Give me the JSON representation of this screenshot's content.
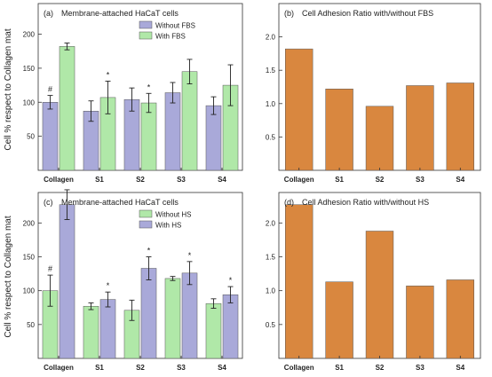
{
  "colors": {
    "lavender": "#A9A9D9",
    "green": "#B0E8A8",
    "orange": "#D9873F",
    "axis": "#333333",
    "text": "#222222"
  },
  "shared_ylabel": "Cell % respect to Collagen mat",
  "chart_data": [
    {
      "panel": "a",
      "panel_label": "(a)",
      "type": "bar",
      "title": "Membrane-attached HaCaT cells",
      "categories": [
        "Collagen",
        "S1",
        "S2",
        "S3",
        "S4"
      ],
      "ylabel": "Cell % respect to Collagen mat",
      "ylim": [
        0,
        245
      ],
      "yticks": [
        "50",
        "100",
        "150",
        "200"
      ],
      "legend_position": "top-right",
      "series": [
        {
          "name": "Without FBS",
          "color_key": "lavender",
          "values": [
            100,
            87,
            104,
            114,
            95
          ],
          "errors": [
            10,
            15,
            17,
            15,
            13
          ]
        },
        {
          "name": "With FBS",
          "color_key": "green",
          "values": [
            182,
            107,
            99,
            145,
            125
          ],
          "errors": [
            5,
            24,
            14,
            18,
            30
          ]
        }
      ],
      "annotations": [
        {
          "series": 0,
          "category": "Collagen",
          "text": "#"
        },
        {
          "series": 1,
          "category": "S1",
          "text": "*"
        },
        {
          "series": 1,
          "category": "S2",
          "text": "*"
        }
      ]
    },
    {
      "panel": "b",
      "panel_label": "(b)",
      "type": "bar",
      "title": "Cell Adhesion Ratio with/without FBS",
      "categories": [
        "Collagen",
        "S1",
        "S2",
        "S3",
        "S4"
      ],
      "ylim": [
        0,
        2.5
      ],
      "yticks": [
        "0.5",
        "1.0",
        "1.5",
        "2.0"
      ],
      "series": [
        {
          "color_key": "orange",
          "values": [
            1.82,
            1.22,
            0.96,
            1.27,
            1.31
          ]
        }
      ]
    },
    {
      "panel": "c",
      "panel_label": "(c)",
      "type": "bar",
      "title": "Membrane-attached HaCaT cells",
      "categories": [
        "Collagen",
        "S1",
        "S2",
        "S3",
        "S4"
      ],
      "ylabel": "Cell % respect to Collagen mat",
      "ylim": [
        0,
        245
      ],
      "yticks": [
        "50",
        "100",
        "150",
        "200"
      ],
      "legend_position": "top-right",
      "series": [
        {
          "name": "Without HS",
          "color_key": "green",
          "values": [
            100,
            77,
            71,
            118,
            81
          ],
          "errors": [
            23,
            5,
            15,
            3,
            7
          ]
        },
        {
          "name": "With HS",
          "color_key": "lavender",
          "values": [
            227,
            87,
            133,
            126,
            94
          ],
          "errors": [
            22,
            11,
            17,
            17,
            12
          ]
        }
      ],
      "annotations": [
        {
          "series": 0,
          "category": "Collagen",
          "text": "#"
        },
        {
          "series": 1,
          "category": "S1",
          "text": "*"
        },
        {
          "series": 1,
          "category": "S2",
          "text": "*"
        },
        {
          "series": 1,
          "category": "S3",
          "text": "*"
        },
        {
          "series": 1,
          "category": "S4",
          "text": "*"
        }
      ]
    },
    {
      "panel": "d",
      "panel_label": "(d)",
      "type": "bar",
      "title": "Cell Adhesion Ratio with/without HS",
      "categories": [
        "Collagen",
        "S1",
        "S2",
        "S3",
        "S4"
      ],
      "ylim": [
        0,
        2.45
      ],
      "yticks": [
        "0.5",
        "1.0",
        "1.5",
        "2.0"
      ],
      "series": [
        {
          "color_key": "orange",
          "values": [
            2.27,
            1.13,
            1.88,
            1.07,
            1.16
          ]
        }
      ]
    }
  ]
}
